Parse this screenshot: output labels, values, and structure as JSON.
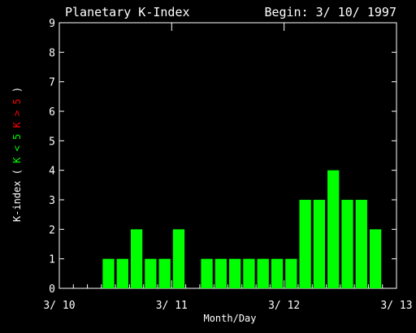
{
  "chart_data": {
    "type": "bar",
    "title": "Planetary K-Index",
    "begin_label": "Begin: 3/ 10/ 1997",
    "xlabel": "Month/Day",
    "ylabel_parts": [
      {
        "text": "K-index",
        "color": "#ffffff"
      },
      {
        "text": "(",
        "color": "#ffffff"
      },
      {
        "text": "K < 5",
        "color": "#00ff00"
      },
      {
        "text": "K > 5",
        "color": "#ff0000"
      },
      {
        "text": ")",
        "color": "#ffffff"
      }
    ],
    "ylim": [
      0,
      9
    ],
    "yticks": [
      "0",
      "1",
      "2",
      "3",
      "4",
      "5",
      "6",
      "7",
      "8",
      "9"
    ],
    "xticks": [
      "3/ 10",
      "3/ 11",
      "3/ 12",
      "3/ 13"
    ],
    "bins_per_day": 8,
    "values": [
      0,
      0,
      0,
      1,
      1,
      2,
      1,
      1,
      2,
      0,
      1,
      1,
      1,
      1,
      1,
      1,
      1,
      3,
      3,
      4,
      3,
      3,
      2,
      0
    ],
    "bar_color": "#00ff00",
    "high_color": "#ff0000",
    "threshold": 5,
    "grid": false
  },
  "colors": {
    "background": "#000000",
    "foreground": "#ffffff"
  }
}
